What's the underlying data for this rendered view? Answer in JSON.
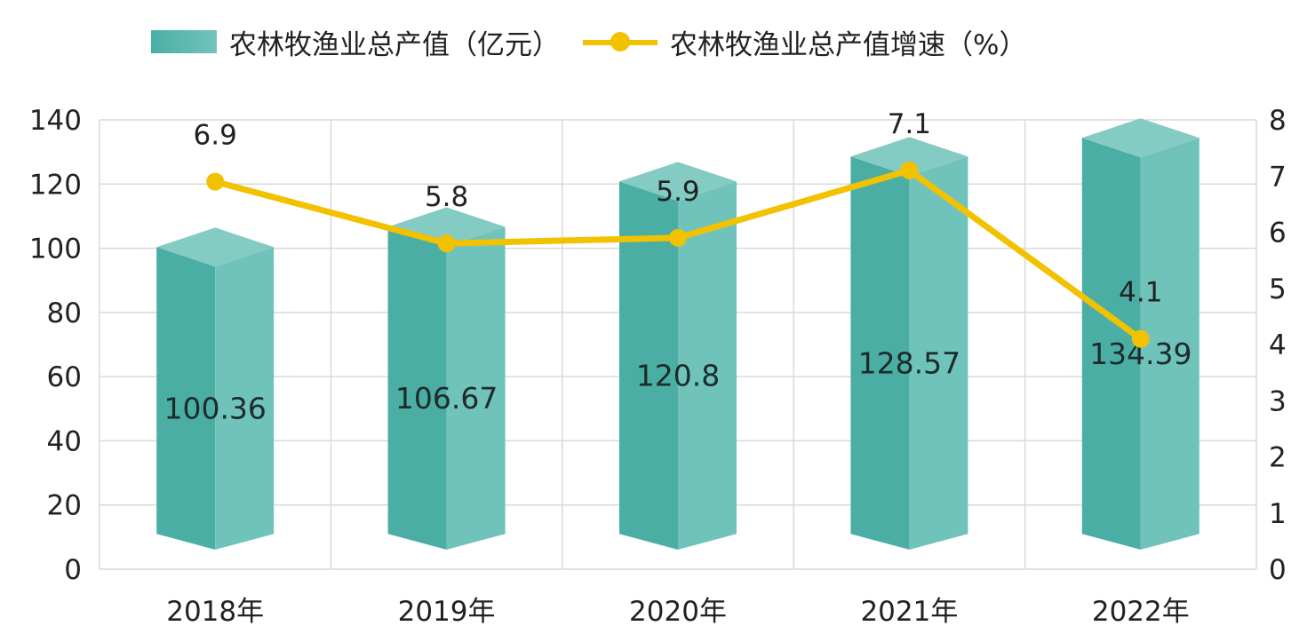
{
  "legend": {
    "bar_label": "农林牧渔业总产值（亿元）",
    "line_label": "农林牧渔业总产值增速（%）"
  },
  "colors": {
    "bar_front": "#4aaea5",
    "bar_side": "#70c3bb",
    "bar_top": "#84cbc4",
    "line": "#f2c200",
    "grid": "#d9d9d9"
  },
  "chart_data": {
    "type": "bar",
    "categories": [
      "2018年",
      "2019年",
      "2020年",
      "2021年",
      "2022年"
    ],
    "series": [
      {
        "name": "农林牧渔业总产值（亿元）",
        "type": "bar",
        "axis": "left",
        "values": [
          100.36,
          106.67,
          120.8,
          128.57,
          134.39
        ]
      },
      {
        "name": "农林牧渔业总产值增速（%）",
        "type": "line",
        "axis": "right",
        "values": [
          6.9,
          5.8,
          5.9,
          7.1,
          4.1
        ]
      }
    ],
    "y_left": {
      "min": 0,
      "max": 140,
      "ticks": [
        0,
        20,
        40,
        60,
        80,
        100,
        120,
        140
      ]
    },
    "y_right": {
      "min": 0,
      "max": 8,
      "ticks": [
        0,
        1,
        2,
        3,
        4,
        5,
        6,
        7,
        8
      ]
    },
    "grid": true,
    "legend_position": "top"
  }
}
